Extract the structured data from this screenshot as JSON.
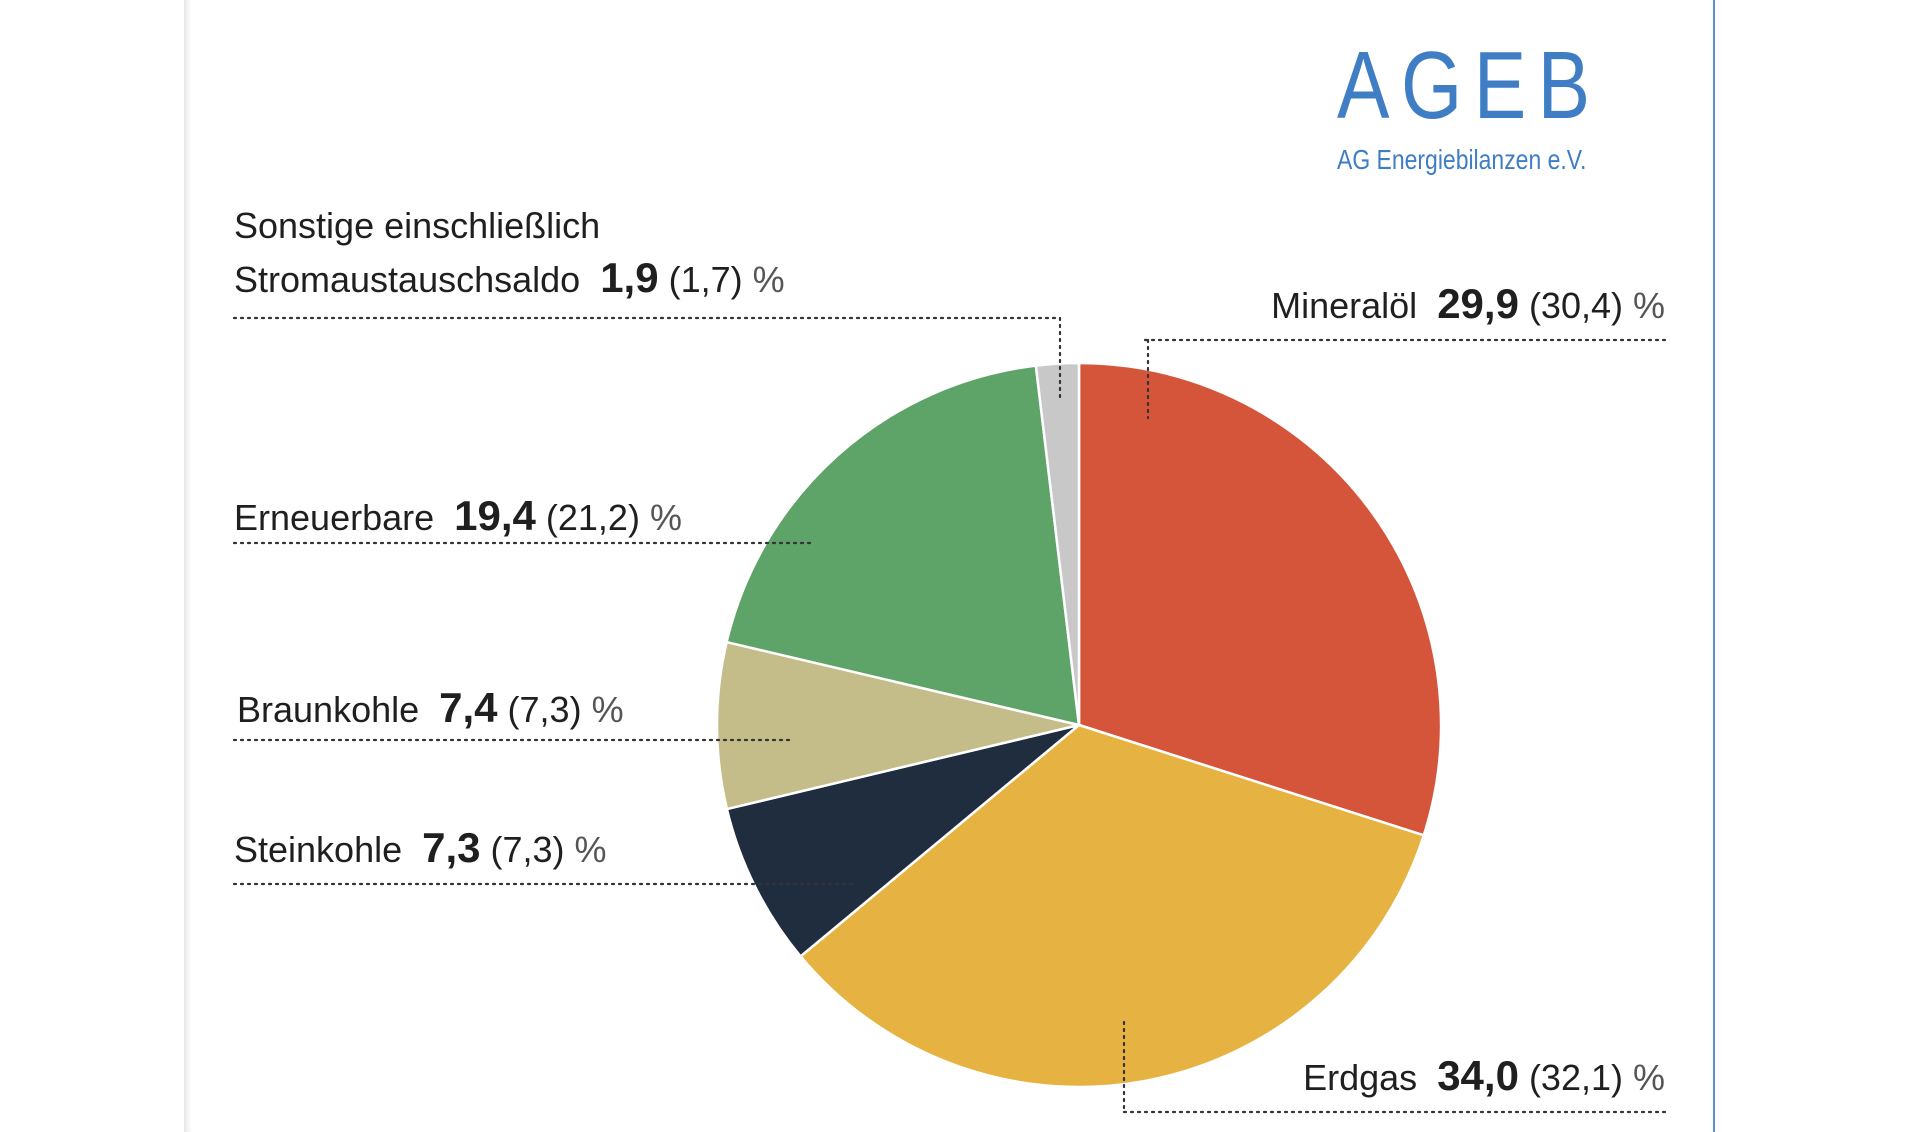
{
  "logo": {
    "main": "AGEB",
    "sub": "AG Energiebilanzen e.V."
  },
  "chart_data": {
    "type": "pie",
    "unit": "%",
    "start_angle_deg": 0,
    "direction": "clockwise",
    "slices": [
      {
        "key": "mineraloel",
        "label": "Mineralöl",
        "value": 29.9,
        "value_text": "29,9",
        "prev_text": "(30,4)",
        "color": "#d5553b"
      },
      {
        "key": "erdgas",
        "label": "Erdgas",
        "value": 34.0,
        "value_text": "34,0",
        "prev_text": "(32,1)",
        "color": "#e6b342"
      },
      {
        "key": "steinkohle",
        "label": "Steinkohle",
        "value": 7.3,
        "value_text": "7,3",
        "prev_text": "(7,3)",
        "color": "#1f2d3f"
      },
      {
        "key": "braunkohle",
        "label": "Braunkohle",
        "value": 7.4,
        "value_text": "7,4",
        "prev_text": "(7,3)",
        "color": "#c4bd8a"
      },
      {
        "key": "erneuerbare",
        "label": "Erneuerbare",
        "value": 19.4,
        "value_text": "19,4",
        "prev_text": "(21,2)",
        "color": "#5ea368"
      },
      {
        "key": "sonstige",
        "label": "Sonstige einschließlich|Stromaustauschsaldo",
        "value": 1.9,
        "value_text": "1,9",
        "prev_text": "(1,7)",
        "color": "#c8c8c8"
      }
    ]
  }
}
